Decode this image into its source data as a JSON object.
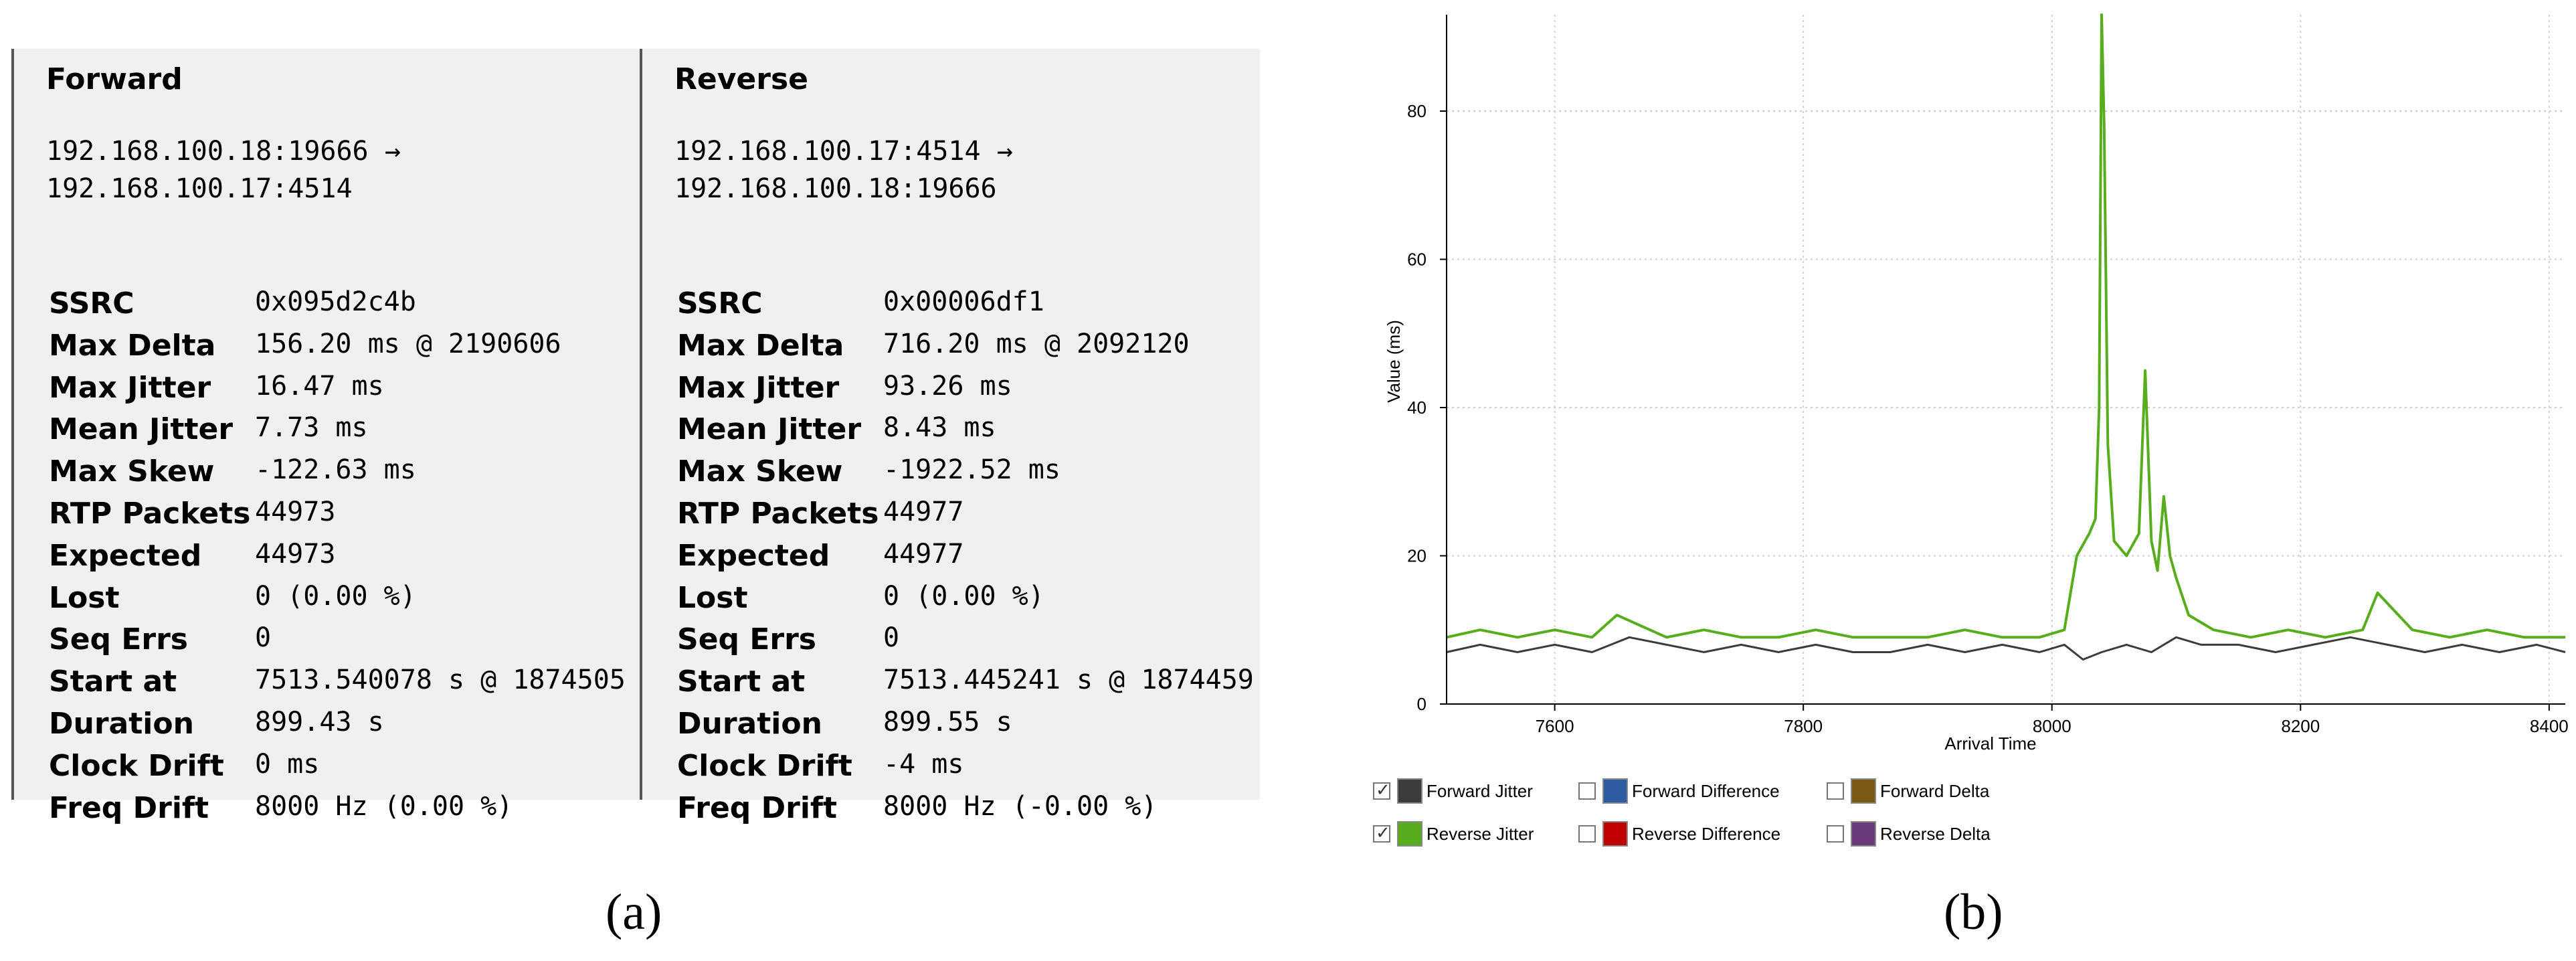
{
  "panel_a": {
    "caption": "(a)",
    "columns": [
      {
        "title": "Forward",
        "endpoint_line1": "192.168.100.18:19666 →",
        "endpoint_line2": "192.168.100.17:4514",
        "stats": [
          {
            "key": "SSRC",
            "value": "0x095d2c4b"
          },
          {
            "key": "Max Delta",
            "value": "156.20 ms @ 2190606"
          },
          {
            "key": "Max Jitter",
            "value": "16.47 ms"
          },
          {
            "key": "Mean Jitter",
            "value": "7.73 ms"
          },
          {
            "key": "Max Skew",
            "value": "-122.63 ms"
          },
          {
            "key": "RTP Packets",
            "value": "44973"
          },
          {
            "key": "Expected",
            "value": "44973"
          },
          {
            "key": "Lost",
            "value": "0 (0.00 %)"
          },
          {
            "key": "Seq Errs",
            "value": "0"
          },
          {
            "key": "Start at",
            "value": "7513.540078 s @ 1874505"
          },
          {
            "key": "Duration",
            "value": "899.43 s"
          },
          {
            "key": "Clock Drift",
            "value": "0 ms"
          },
          {
            "key": "Freq Drift",
            "value": "8000 Hz (0.00 %)"
          }
        ]
      },
      {
        "title": "Reverse",
        "endpoint_line1": "192.168.100.17:4514 →",
        "endpoint_line2": "192.168.100.18:19666",
        "stats": [
          {
            "key": "SSRC",
            "value": "0x00006df1"
          },
          {
            "key": "Max Delta",
            "value": "716.20 ms @ 2092120"
          },
          {
            "key": "Max Jitter",
            "value": "93.26 ms"
          },
          {
            "key": "Mean Jitter",
            "value": "8.43 ms"
          },
          {
            "key": "Max Skew",
            "value": "-1922.52 ms"
          },
          {
            "key": "RTP Packets",
            "value": "44977"
          },
          {
            "key": "Expected",
            "value": "44977"
          },
          {
            "key": "Lost",
            "value": "0 (0.00 %)"
          },
          {
            "key": "Seq Errs",
            "value": "0"
          },
          {
            "key": "Start at",
            "value": "7513.445241 s @ 1874459"
          },
          {
            "key": "Duration",
            "value": "899.55 s"
          },
          {
            "key": "Clock Drift",
            "value": "-4 ms"
          },
          {
            "key": "Freq Drift",
            "value": "8000 Hz (-0.00 %)"
          }
        ]
      }
    ]
  },
  "panel_b": {
    "caption": "(b)",
    "legend": [
      {
        "label": "Forward Jitter",
        "checked": true,
        "color": "#3c3c3c"
      },
      {
        "label": "Forward Difference",
        "checked": false,
        "color": "#2d5aa0"
      },
      {
        "label": "Forward Delta",
        "checked": false,
        "color": "#7a5a12"
      },
      {
        "label": "Reverse Jitter",
        "checked": true,
        "color": "#57ad1e"
      },
      {
        "label": "Reverse Difference",
        "checked": false,
        "color": "#c00000"
      },
      {
        "label": "Reverse Delta",
        "checked": false,
        "color": "#6a3a7a"
      }
    ]
  },
  "chart_data": {
    "type": "line",
    "title": "",
    "xlabel": "Arrival Time",
    "ylabel": "Value (ms)",
    "xlim": [
      7513,
      8413
    ],
    "ylim": [
      0,
      93
    ],
    "xticks": [
      7600,
      7800,
      8000,
      8200,
      8400
    ],
    "yticks": [
      0,
      20,
      40,
      60,
      80
    ],
    "grid": true,
    "series": [
      {
        "name": "Forward Jitter",
        "color": "#3c3c3c",
        "x": [
          7513,
          7540,
          7570,
          7600,
          7630,
          7660,
          7690,
          7720,
          7750,
          7780,
          7810,
          7840,
          7870,
          7900,
          7930,
          7960,
          7990,
          8010,
          8025,
          8040,
          8060,
          8080,
          8100,
          8120,
          8150,
          8180,
          8210,
          8240,
          8270,
          8300,
          8330,
          8360,
          8390,
          8413
        ],
        "y": [
          7,
          8,
          7,
          8,
          7,
          9,
          8,
          7,
          8,
          7,
          8,
          7,
          7,
          8,
          7,
          8,
          7,
          8,
          6,
          7,
          8,
          7,
          9,
          8,
          8,
          7,
          8,
          9,
          8,
          7,
          8,
          7,
          8,
          7
        ]
      },
      {
        "name": "Reverse Jitter",
        "color": "#57ad1e",
        "x": [
          7513,
          7540,
          7570,
          7600,
          7630,
          7650,
          7690,
          7720,
          7750,
          7780,
          7810,
          7840,
          7870,
          7900,
          7930,
          7960,
          7990,
          8010,
          8020,
          8030,
          8035,
          8038,
          8040,
          8042,
          8045,
          8050,
          8060,
          8070,
          8075,
          8080,
          8085,
          8090,
          8095,
          8100,
          8110,
          8130,
          8160,
          8190,
          8220,
          8250,
          8262,
          8290,
          8320,
          8350,
          8380,
          8413
        ],
        "y": [
          9,
          10,
          9,
          10,
          9,
          12,
          9,
          10,
          9,
          9,
          10,
          9,
          9,
          9,
          10,
          9,
          9,
          10,
          20,
          23,
          25,
          40,
          93,
          78,
          35,
          22,
          20,
          23,
          45,
          22,
          18,
          28,
          20,
          17,
          12,
          10,
          9,
          10,
          9,
          10,
          15,
          10,
          9,
          10,
          9,
          9
        ]
      }
    ]
  }
}
